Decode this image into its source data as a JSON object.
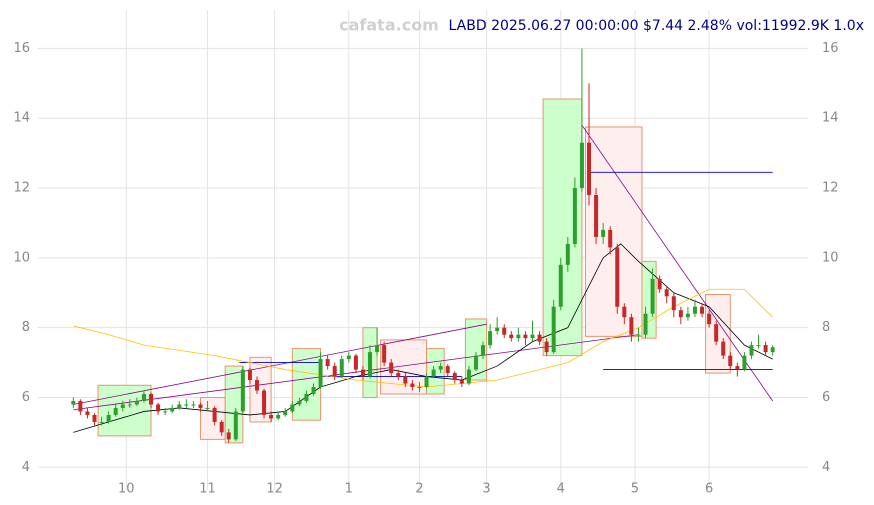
{
  "chart_data": {
    "type": "candlestick",
    "title": "LABD 2025.06.27 00:00:00 $7.44 2.48% vol:11992.9K 1.0x",
    "watermark": "cafata.com",
    "xlim": [
      -10,
      208
    ],
    "ylim": [
      3.35,
      17.1
    ],
    "yticks": [
      4,
      6,
      8,
      10,
      12,
      14,
      16
    ],
    "xticks": [
      {
        "value": 15,
        "label": "10"
      },
      {
        "value": 38,
        "label": "11"
      },
      {
        "value": 57,
        "label": "12"
      },
      {
        "value": 78,
        "label": "1"
      },
      {
        "value": 98,
        "label": "2"
      },
      {
        "value": 117,
        "label": "3"
      },
      {
        "value": 138,
        "label": "4"
      },
      {
        "value": 159,
        "label": "5"
      },
      {
        "value": 180,
        "label": "6"
      }
    ],
    "grid": true,
    "up_color": "#2ca02c",
    "down_color": "#c62828",
    "x": [
      0,
      2,
      4,
      6,
      8,
      10,
      12,
      14,
      16,
      18,
      20,
      22,
      24,
      26,
      28,
      30,
      32,
      34,
      36,
      38,
      40,
      42,
      44,
      46,
      48,
      50,
      52,
      54,
      56,
      58,
      60,
      62,
      64,
      66,
      68,
      70,
      72,
      74,
      76,
      78,
      80,
      82,
      84,
      86,
      88,
      90,
      92,
      94,
      96,
      98,
      100,
      102,
      104,
      106,
      108,
      110,
      112,
      114,
      116,
      118,
      120,
      122,
      124,
      126,
      128,
      130,
      132,
      134,
      136,
      138,
      140,
      142,
      144,
      146,
      148,
      150,
      152,
      154,
      156,
      158,
      160,
      162,
      164,
      166,
      168,
      170,
      172,
      174,
      176,
      178,
      180,
      182,
      184,
      186,
      188,
      190,
      192,
      194,
      196,
      198
    ],
    "candles": [
      [
        5.8,
        6.0,
        5.7,
        5.9
      ],
      [
        5.9,
        5.95,
        5.5,
        5.6
      ],
      [
        5.6,
        5.7,
        5.4,
        5.5
      ],
      [
        5.5,
        5.55,
        5.2,
        5.3
      ],
      [
        5.3,
        5.45,
        5.2,
        5.3
      ],
      [
        5.3,
        5.6,
        5.25,
        5.5
      ],
      [
        5.5,
        5.8,
        5.45,
        5.7
      ],
      [
        5.7,
        5.9,
        5.6,
        5.8
      ],
      [
        5.8,
        5.95,
        5.7,
        5.8
      ],
      [
        5.8,
        6.0,
        5.75,
        5.9
      ],
      [
        5.9,
        6.2,
        5.85,
        6.1
      ],
      [
        6.1,
        6.15,
        5.7,
        5.8
      ],
      [
        5.8,
        5.85,
        5.5,
        5.6
      ],
      [
        5.6,
        5.7,
        5.5,
        5.6
      ],
      [
        5.6,
        5.8,
        5.55,
        5.7
      ],
      [
        5.7,
        5.9,
        5.65,
        5.8
      ],
      [
        5.8,
        5.95,
        5.7,
        5.8
      ],
      [
        5.8,
        5.9,
        5.7,
        5.8
      ],
      [
        5.8,
        5.85,
        5.6,
        5.7
      ],
      [
        5.7,
        5.9,
        5.6,
        5.7
      ],
      [
        5.7,
        5.75,
        5.2,
        5.3
      ],
      [
        5.3,
        5.35,
        4.9,
        5.0
      ],
      [
        5.0,
        5.1,
        4.7,
        4.8
      ],
      [
        4.8,
        5.7,
        4.75,
        5.6
      ],
      [
        5.6,
        6.9,
        5.55,
        6.8
      ],
      [
        6.8,
        6.85,
        6.4,
        6.5
      ],
      [
        6.5,
        6.6,
        6.1,
        6.2
      ],
      [
        6.2,
        6.25,
        5.4,
        5.5
      ],
      [
        5.5,
        5.6,
        5.3,
        5.4
      ],
      [
        5.4,
        5.6,
        5.35,
        5.5
      ],
      [
        5.5,
        5.7,
        5.45,
        5.6
      ],
      [
        5.6,
        5.9,
        5.55,
        5.8
      ],
      [
        5.8,
        6.0,
        5.75,
        5.9
      ],
      [
        5.9,
        6.2,
        5.85,
        6.1
      ],
      [
        6.1,
        6.4,
        6.05,
        6.3
      ],
      [
        6.3,
        7.3,
        6.25,
        7.1
      ],
      [
        7.1,
        7.2,
        6.8,
        6.9
      ],
      [
        6.9,
        7.0,
        6.5,
        6.6
      ],
      [
        6.6,
        7.2,
        6.55,
        7.1
      ],
      [
        7.1,
        7.3,
        7.0,
        7.2
      ],
      [
        7.2,
        7.25,
        6.7,
        6.8
      ],
      [
        6.8,
        6.9,
        6.5,
        6.6
      ],
      [
        6.6,
        7.5,
        6.55,
        7.3
      ],
      [
        7.3,
        8.0,
        7.2,
        7.5
      ],
      [
        7.5,
        7.6,
        6.9,
        7.0
      ],
      [
        7.0,
        7.1,
        6.6,
        6.7
      ],
      [
        6.7,
        6.8,
        6.5,
        6.6
      ],
      [
        6.6,
        6.7,
        6.3,
        6.4
      ],
      [
        6.4,
        6.5,
        6.2,
        6.3
      ],
      [
        6.3,
        6.45,
        6.15,
        6.3
      ],
      [
        6.3,
        6.7,
        6.25,
        6.6
      ],
      [
        6.6,
        6.9,
        6.55,
        6.8
      ],
      [
        6.8,
        7.0,
        6.7,
        6.9
      ],
      [
        6.9,
        6.95,
        6.6,
        6.7
      ],
      [
        6.7,
        6.75,
        6.4,
        6.5
      ],
      [
        6.5,
        6.6,
        6.3,
        6.4
      ],
      [
        6.4,
        6.9,
        6.35,
        6.8
      ],
      [
        6.8,
        7.3,
        6.75,
        7.2
      ],
      [
        7.2,
        7.6,
        7.1,
        7.5
      ],
      [
        7.5,
        8.1,
        7.4,
        7.9
      ],
      [
        7.9,
        8.3,
        7.8,
        8.0
      ],
      [
        8.0,
        8.1,
        7.7,
        7.8
      ],
      [
        7.8,
        7.9,
        7.6,
        7.7
      ],
      [
        7.7,
        8.0,
        7.6,
        7.8
      ],
      [
        7.8,
        7.9,
        7.5,
        7.7
      ],
      [
        7.7,
        8.2,
        7.6,
        7.8
      ],
      [
        7.8,
        7.9,
        7.5,
        7.6
      ],
      [
        7.6,
        7.7,
        7.2,
        7.3
      ],
      [
        7.3,
        8.8,
        7.25,
        8.6
      ],
      [
        8.6,
        10.0,
        8.5,
        9.8
      ],
      [
        9.8,
        10.6,
        9.6,
        10.4
      ],
      [
        10.4,
        12.3,
        10.3,
        12.0
      ],
      [
        12.0,
        16.0,
        11.9,
        13.3
      ],
      [
        13.3,
        15.0,
        11.5,
        11.8
      ],
      [
        11.8,
        12.0,
        10.4,
        10.6
      ],
      [
        10.6,
        11.0,
        10.4,
        10.8
      ],
      [
        10.8,
        10.9,
        10.1,
        10.3
      ],
      [
        10.3,
        10.4,
        8.4,
        8.6
      ],
      [
        8.6,
        8.7,
        8.1,
        8.3
      ],
      [
        8.3,
        8.4,
        7.6,
        7.8
      ],
      [
        7.8,
        8.0,
        7.6,
        7.8
      ],
      [
        7.8,
        8.6,
        7.7,
        8.4
      ],
      [
        8.4,
        9.7,
        8.3,
        9.4
      ],
      [
        9.4,
        9.5,
        9.0,
        9.1
      ],
      [
        9.1,
        9.2,
        8.7,
        8.9
      ],
      [
        8.9,
        9.0,
        8.3,
        8.5
      ],
      [
        8.5,
        8.6,
        8.1,
        8.3
      ],
      [
        8.3,
        8.6,
        8.2,
        8.4
      ],
      [
        8.4,
        8.8,
        8.3,
        8.6
      ],
      [
        8.6,
        8.7,
        8.3,
        8.4
      ],
      [
        8.4,
        8.5,
        8.0,
        8.1
      ],
      [
        8.1,
        8.2,
        7.5,
        7.6
      ],
      [
        7.6,
        7.7,
        7.1,
        7.2
      ],
      [
        7.2,
        7.3,
        6.8,
        6.9
      ],
      [
        6.9,
        7.0,
        6.6,
        6.8
      ],
      [
        6.8,
        7.3,
        6.75,
        7.2
      ],
      [
        7.2,
        7.6,
        7.1,
        7.5
      ],
      [
        7.5,
        7.8,
        7.4,
        7.5
      ],
      [
        7.5,
        7.6,
        7.2,
        7.3
      ],
      [
        7.3,
        7.5,
        7.2,
        7.44
      ]
    ],
    "boxes": [
      {
        "x0": 7,
        "x1": 22,
        "low": 4.9,
        "high": 6.35,
        "color": "#ccffcc"
      },
      {
        "x0": 36,
        "x1": 43,
        "low": 4.8,
        "high": 6.0,
        "color": "#ffeeee"
      },
      {
        "x0": 43,
        "x1": 48,
        "low": 4.7,
        "high": 6.9,
        "color": "#ccffcc"
      },
      {
        "x0": 50,
        "x1": 56,
        "low": 5.3,
        "high": 7.15,
        "color": "#ffeeee"
      },
      {
        "x0": 62,
        "x1": 70,
        "low": 5.35,
        "high": 7.4,
        "color": "#ccffcc"
      },
      {
        "x0": 82,
        "x1": 86,
        "low": 6.0,
        "high": 8.0,
        "color": "#ccffcc"
      },
      {
        "x0": 87,
        "x1": 100,
        "low": 6.1,
        "high": 7.65,
        "color": "#ffeeee"
      },
      {
        "x0": 100,
        "x1": 105,
        "low": 6.1,
        "high": 7.4,
        "color": "#ccffcc"
      },
      {
        "x0": 111,
        "x1": 117,
        "low": 6.5,
        "high": 8.25,
        "color": "#ccffcc"
      },
      {
        "x0": 133,
        "x1": 144,
        "low": 7.2,
        "high": 14.55,
        "color": "#ccffcc"
      },
      {
        "x0": 145,
        "x1": 161,
        "low": 7.75,
        "high": 13.75,
        "color": "#ffeeee"
      },
      {
        "x0": 161,
        "x1": 165,
        "low": 7.7,
        "high": 9.9,
        "color": "#ccffcc"
      },
      {
        "x0": 179,
        "x1": 186,
        "low": 6.7,
        "high": 8.95,
        "color": "#ffeeee"
      }
    ],
    "lines": [
      {
        "color": "#000000",
        "x": [
          0,
          10,
          20,
          30,
          40,
          50,
          60,
          70,
          80,
          90,
          100,
          110,
          120,
          130,
          140,
          150,
          155,
          160,
          170,
          180,
          190,
          198
        ],
        "values": [
          5.0,
          5.3,
          5.6,
          5.7,
          5.6,
          5.5,
          5.6,
          6.3,
          6.6,
          6.8,
          6.6,
          6.5,
          6.9,
          7.6,
          8.0,
          10.0,
          10.4,
          9.9,
          9.0,
          8.6,
          7.5,
          7.1
        ]
      },
      {
        "color": "#ffc000",
        "x": [
          0,
          10,
          20,
          40,
          60,
          80,
          100,
          120,
          140,
          150,
          160,
          170,
          180,
          190,
          198
        ],
        "values": [
          8.05,
          7.8,
          7.5,
          7.2,
          6.8,
          6.5,
          6.3,
          6.5,
          7.0,
          7.6,
          8.0,
          8.6,
          9.1,
          9.1,
          8.3
        ]
      }
    ],
    "trend_lines": [
      {
        "color": "#8b008b",
        "points": [
          0,
          5.8,
          117,
          8.1
        ]
      },
      {
        "color": "#8b008b",
        "points": [
          0,
          5.65,
          160,
          7.8
        ]
      },
      {
        "color": "#8b008b",
        "points": [
          144,
          13.8,
          198,
          5.9
        ]
      },
      {
        "color": "#0000cd",
        "points": [
          146,
          12.45,
          198,
          12.45
        ]
      },
      {
        "color": "#0000cd",
        "points": [
          150,
          6.8,
          198,
          6.8
        ]
      },
      {
        "color": "#0000cd",
        "points": [
          47,
          7.0,
          70,
          7.0
        ]
      },
      {
        "color": "#0000cd",
        "points": [
          72,
          6.6,
          110,
          6.6
        ]
      }
    ]
  }
}
